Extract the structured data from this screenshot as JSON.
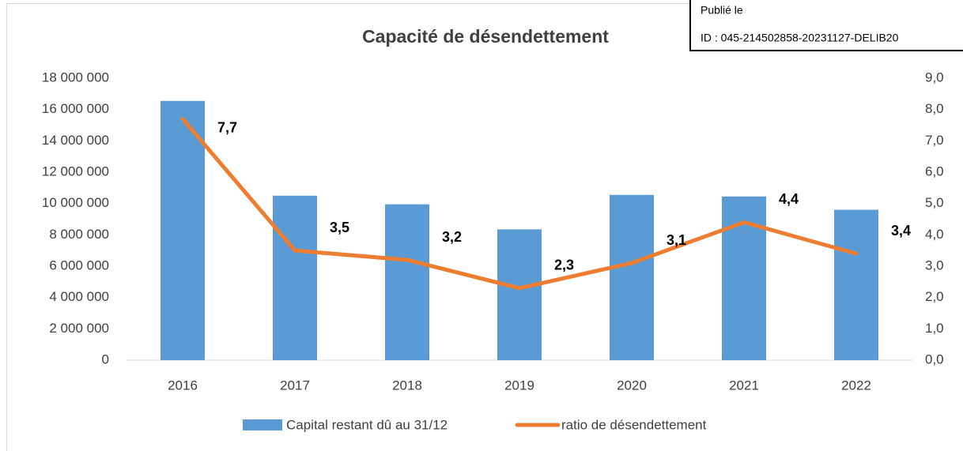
{
  "chart_data": {
    "type": "bar_line",
    "title": "Capacité de désendettement",
    "categories": [
      "2016",
      "2017",
      "2018",
      "2019",
      "2020",
      "2021",
      "2022"
    ],
    "series": [
      {
        "name": "Capital restant dû au 31/12",
        "color": "#5b9bd5",
        "values": [
          16550000,
          10500000,
          9950000,
          8350000,
          10550000,
          10450000,
          9600000
        ]
      },
      {
        "name": "ratio de désendettement",
        "color": "#ed7d31",
        "axis": "y2",
        "values": [
          7.7,
          3.5,
          3.2,
          2.3,
          3.1,
          4.4,
          3.4
        ],
        "value_labels": [
          "7,7",
          "3,5",
          "3,2",
          "2,3",
          "3,1",
          "4,4",
          "3,4"
        ]
      }
    ],
    "ylim": [
      0,
      18000000
    ],
    "yticks": [
      0,
      {
        "value": 2000000,
        "label": "2 000 000"
      },
      {
        "value": 4000000,
        "label": "4 000 000"
      },
      {
        "value": 6000000,
        "label": "6 000 000"
      },
      {
        "value": 8000000,
        "label": "8 000 000"
      },
      {
        "value": 10000000,
        "label": "10 000 000"
      },
      {
        "value": 12000000,
        "label": "12 000 000"
      },
      {
        "value": 14000000,
        "label": "14 000 000"
      },
      {
        "value": 16000000,
        "label": "16 000 000"
      },
      {
        "value": 18000000,
        "label": "18 000 000"
      }
    ],
    "y2lim": [
      0,
      9
    ],
    "y2ticks": [
      {
        "value": 0,
        "label": "0,0"
      },
      {
        "value": 1,
        "label": "1,0"
      },
      {
        "value": 2,
        "label": "2,0"
      },
      {
        "value": 3,
        "label": "3,0"
      },
      {
        "value": 4,
        "label": "4,0"
      },
      {
        "value": 5,
        "label": "5,0"
      },
      {
        "value": 6,
        "label": "6,0"
      },
      {
        "value": 7,
        "label": "7,0"
      },
      {
        "value": 8,
        "label": "8,0"
      },
      {
        "value": 9,
        "label": "9,0"
      }
    ],
    "grid": false
  },
  "stamp": {
    "line1": "Publié le",
    "line2": "ID : 045-214502858-20231127-DELIB20"
  }
}
